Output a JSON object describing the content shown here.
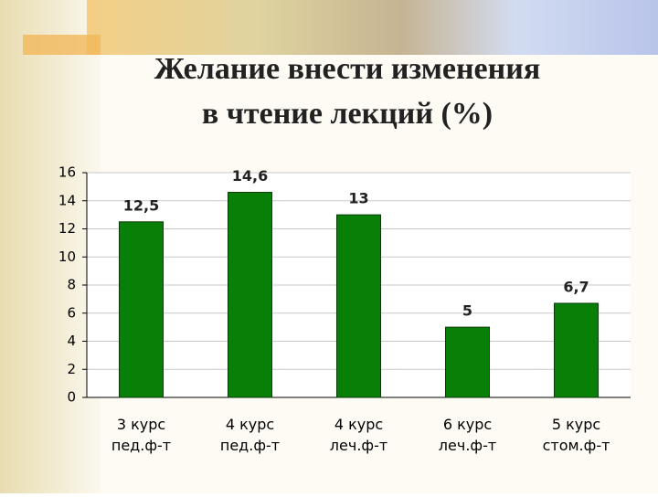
{
  "chart_data": {
    "type": "bar",
    "title": [
      "Желание внести изменения",
      "в чтение лекций (%)"
    ],
    "categories": [
      "3 курс\nпед.ф-т",
      "4 курс\nпед.ф-т",
      "4 курс\nлеч.ф-т",
      "6 курс\nлеч.ф-т",
      "5 курс\nстом.ф-т"
    ],
    "values": [
      12.5,
      14.6,
      13,
      5,
      6.7
    ],
    "value_labels": [
      "12,5",
      "14,6",
      "13",
      "5",
      "6,7"
    ],
    "color": "#088008",
    "ylim": [
      0,
      16
    ],
    "yticks": [
      0,
      2,
      4,
      6,
      8,
      10,
      12,
      14,
      16
    ],
    "grid": true
  }
}
